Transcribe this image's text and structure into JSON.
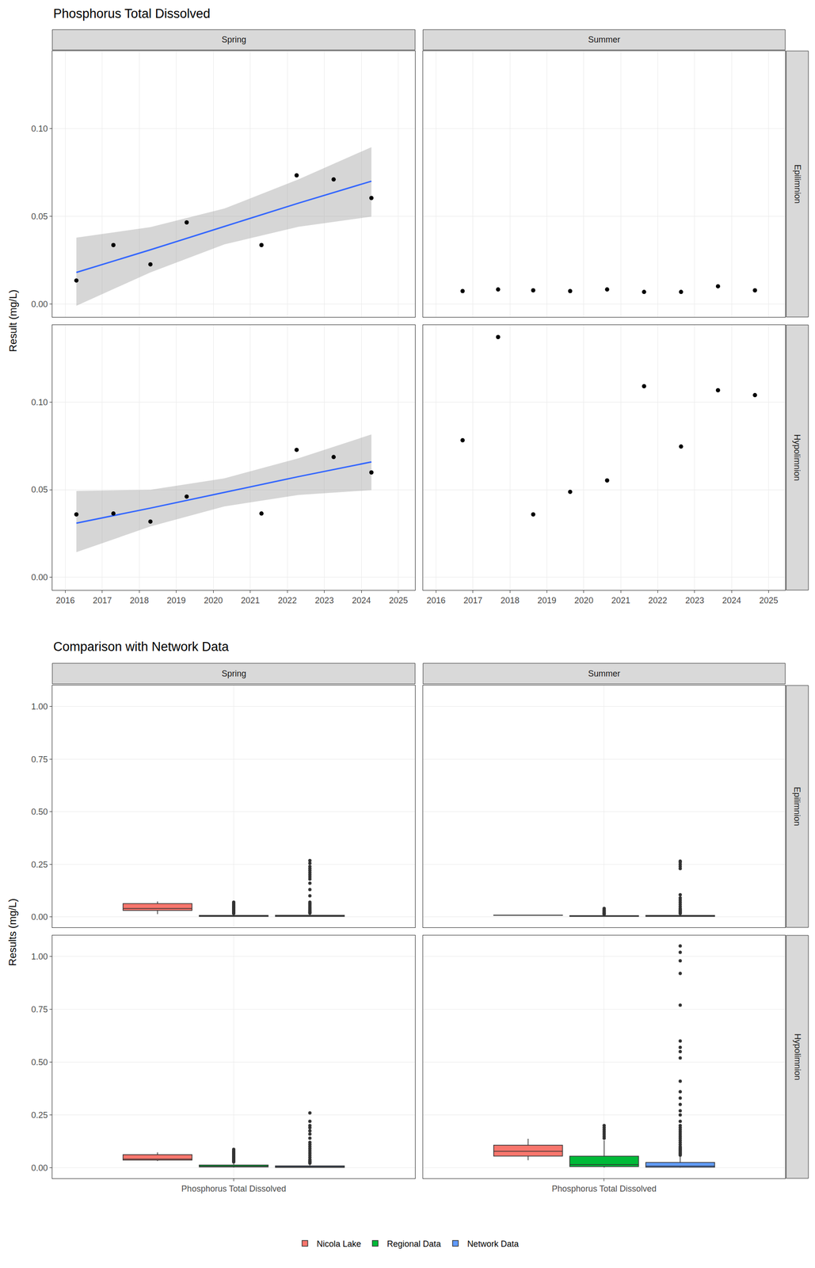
{
  "chart_data": [
    {
      "type": "scatter",
      "title": "Phosphorus Total Dissolved",
      "y_label": "Result (mg/L)",
      "columns": [
        "Spring",
        "Summer"
      ],
      "rows": [
        "Epilimnion",
        "Hypolimnion"
      ],
      "xlim": [
        2015.65,
        2025.45
      ],
      "xticks": [
        2016,
        2017,
        2018,
        2019,
        2020,
        2021,
        2022,
        2023,
        2024,
        2025
      ],
      "ylim": [
        -0.0074,
        0.1442
      ],
      "yticks": [
        {
          "value": 0,
          "label": "0.00"
        },
        {
          "value": 0.05,
          "label": "0.05"
        },
        {
          "value": 0.1,
          "label": "0.10"
        }
      ],
      "grid": true,
      "color": "#000000",
      "panels": [
        {
          "column": "Spring",
          "row": "Epilimnion",
          "x": [
            2016.3,
            2017.3,
            2018.3,
            2019.28,
            2021.3,
            2022.25,
            2023.25,
            2024.27
          ],
          "values": [
            0.0134,
            0.0336,
            0.0226,
            0.0465,
            0.0336,
            0.0733,
            0.071,
            0.0604
          ],
          "trend": {
            "color": "#3366FF",
            "x": [
              2016.3,
              2018.3,
              2020.3,
              2022.3,
              2024.27
            ],
            "values": [
              0.018,
              0.0309,
              0.0442,
              0.0575,
              0.07
            ],
            "lower": [
              -0.001,
              0.018,
              0.034,
              0.044,
              0.0498
            ],
            "upper": [
              0.0378,
              0.0438,
              0.0544,
              0.071,
              0.0894
            ]
          }
        },
        {
          "column": "Summer",
          "row": "Epilimnion",
          "x": [
            2016.72,
            2017.68,
            2018.63,
            2019.63,
            2020.63,
            2021.63,
            2022.63,
            2023.63,
            2024.63
          ],
          "values": [
            0.0074,
            0.0083,
            0.0078,
            0.0074,
            0.0083,
            0.0069,
            0.0069,
            0.0101,
            0.0078
          ]
        },
        {
          "column": "Spring",
          "row": "Hypolimnion",
          "x": [
            2016.3,
            2017.3,
            2018.3,
            2019.28,
            2021.3,
            2022.25,
            2023.25,
            2024.27
          ],
          "values": [
            0.0359,
            0.0364,
            0.0318,
            0.0461,
            0.0364,
            0.0728,
            0.0687,
            0.0599
          ],
          "trend": {
            "color": "#3366FF",
            "x": [
              2016.3,
              2018.3,
              2020.3,
              2022.3,
              2024.27
            ],
            "values": [
              0.0309,
              0.0395,
              0.0485,
              0.0575,
              0.0659
            ],
            "lower": [
              0.0143,
              0.029,
              0.0405,
              0.047,
              0.0498
            ],
            "upper": [
              0.0493,
              0.05,
              0.0565,
              0.068,
              0.0816
            ]
          }
        },
        {
          "column": "Summer",
          "row": "Hypolimnion",
          "x": [
            2016.72,
            2017.68,
            2018.63,
            2019.63,
            2020.63,
            2021.63,
            2022.63,
            2023.63,
            2024.63
          ],
          "values": [
            0.0783,
            0.1373,
            0.0359,
            0.0488,
            0.0553,
            0.1092,
            0.0747,
            0.1069,
            0.1041
          ]
        }
      ]
    },
    {
      "type": "box",
      "title": "Comparison with Network Data",
      "y_label": "Results (mg/L)",
      "columns": [
        "Spring",
        "Summer"
      ],
      "rows": [
        "Epilimnion",
        "Hypolimnion"
      ],
      "categories": [
        "Phosphorus Total Dissolved"
      ],
      "ylim": [
        -0.05,
        1.1
      ],
      "yticks": [
        {
          "value": 0,
          "label": "0.00"
        },
        {
          "value": 0.25,
          "label": "0.25"
        },
        {
          "value": 0.5,
          "label": "0.50"
        },
        {
          "value": 0.75,
          "label": "0.75"
        },
        {
          "value": 1,
          "label": "1.00"
        }
      ],
      "grid": true,
      "legend": "bottom",
      "series": [
        {
          "name": "Nicola Lake",
          "color": "#F8766D"
        },
        {
          "name": "Regional Data",
          "color": "#00BA38"
        },
        {
          "name": "Network Data",
          "color": "#619CFF"
        }
      ],
      "panels": [
        {
          "column": "Spring",
          "row": "Epilimnion",
          "boxes": [
            {
              "q1": 0.0309,
              "median": 0.04,
              "q3": 0.0631,
              "lowerfence": 0.0134,
              "upperfence": 0.0733,
              "outliers": []
            },
            {
              "q1": 0.002,
              "median": 0.004,
              "q3": 0.007,
              "lowerfence": 0.001,
              "upperfence": 0.014,
              "outliers": [
                0.016,
                0.018,
                0.02,
                0.023,
                0.026,
                0.03,
                0.034,
                0.038,
                0.042,
                0.046,
                0.05,
                0.055,
                0.06,
                0.065,
                0.07
              ]
            },
            {
              "q1": 0.002,
              "median": 0.004,
              "q3": 0.008,
              "lowerfence": 0.0005,
              "upperfence": 0.016,
              "outliers": [
                0.018,
                0.021,
                0.025,
                0.03,
                0.035,
                0.04,
                0.046,
                0.052,
                0.058,
                0.064,
                0.07,
                0.1,
                0.13,
                0.16,
                0.18,
                0.19,
                0.2,
                0.21,
                0.22,
                0.23,
                0.24,
                0.255,
                0.268
              ]
            }
          ]
        },
        {
          "column": "Summer",
          "row": "Epilimnion",
          "boxes": [
            {
              "q1": 0.0074,
              "median": 0.0078,
              "q3": 0.0083,
              "lowerfence": 0.0069,
              "upperfence": 0.0101,
              "outliers": []
            },
            {
              "q1": 0.002,
              "median": 0.003,
              "q3": 0.006,
              "lowerfence": 0.001,
              "upperfence": 0.01,
              "outliers": [
                0.012,
                0.015,
                0.018,
                0.022,
                0.026,
                0.03,
                0.035,
                0.04
              ]
            },
            {
              "q1": 0.002,
              "median": 0.004,
              "q3": 0.007,
              "lowerfence": 0.0005,
              "upperfence": 0.014,
              "outliers": [
                0.016,
                0.02,
                0.025,
                0.03,
                0.035,
                0.04,
                0.05,
                0.06,
                0.07,
                0.08,
                0.09,
                0.105,
                0.23,
                0.24,
                0.25,
                0.26,
                0.265
              ]
            }
          ]
        },
        {
          "column": "Spring",
          "row": "Hypolimnion",
          "boxes": [
            {
              "q1": 0.0363,
              "median": 0.0412,
              "q3": 0.0621,
              "lowerfence": 0.0318,
              "upperfence": 0.0728,
              "outliers": []
            },
            {
              "q1": 0.004,
              "median": 0.007,
              "q3": 0.013,
              "lowerfence": 0.001,
              "upperfence": 0.025,
              "outliers": [
                0.028,
                0.032,
                0.036,
                0.04,
                0.045,
                0.05,
                0.055,
                0.06,
                0.065,
                0.07,
                0.075,
                0.08,
                0.087
              ]
            },
            {
              "q1": 0.002,
              "median": 0.005,
              "q3": 0.009,
              "lowerfence": 0.0005,
              "upperfence": 0.019,
              "outliers": [
                0.022,
                0.026,
                0.03,
                0.035,
                0.04,
                0.05,
                0.06,
                0.07,
                0.08,
                0.09,
                0.1,
                0.11,
                0.12,
                0.14,
                0.16,
                0.175,
                0.19,
                0.2,
                0.22,
                0.26
              ]
            }
          ]
        },
        {
          "column": "Summer",
          "row": "Hypolimnion",
          "boxes": [
            {
              "q1": 0.0553,
              "median": 0.0783,
              "q3": 0.1069,
              "lowerfence": 0.0359,
              "upperfence": 0.1373,
              "outliers": []
            },
            {
              "q1": 0.006,
              "median": 0.015,
              "q3": 0.055,
              "lowerfence": 0.001,
              "upperfence": 0.13,
              "outliers": [
                0.14,
                0.15,
                0.16,
                0.17,
                0.18,
                0.19,
                0.2
              ]
            },
            {
              "q1": 0.003,
              "median": 0.008,
              "q3": 0.025,
              "lowerfence": 0.0005,
              "upperfence": 0.057,
              "outliers": [
                0.06,
                0.065,
                0.07,
                0.075,
                0.08,
                0.085,
                0.09,
                0.095,
                0.1,
                0.11,
                0.12,
                0.13,
                0.14,
                0.15,
                0.16,
                0.17,
                0.18,
                0.19,
                0.2,
                0.22,
                0.25,
                0.27,
                0.3,
                0.33,
                0.36,
                0.41,
                0.52,
                0.55,
                0.57,
                0.6,
                0.77,
                0.92,
                0.98,
                1.02,
                1.05
              ]
            }
          ]
        }
      ]
    }
  ]
}
